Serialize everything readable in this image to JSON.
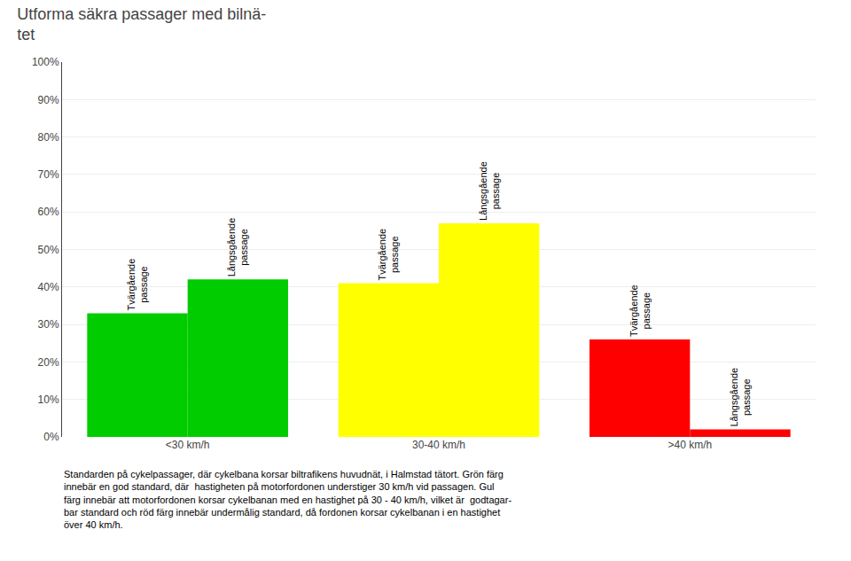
{
  "chart_data": {
    "type": "bar",
    "title": "Utforma säkra passager med bilnä-\ntet",
    "categories": [
      "<30 km/h",
      "30-40 km/h",
      ">40 km/h"
    ],
    "series": [
      {
        "name": "Tvärgående\npassage",
        "colors": [
          "#00cc00",
          "#ffff00",
          "#ff0000"
        ],
        "values": [
          33,
          41,
          26
        ]
      },
      {
        "name": "Långsgående\npassage",
        "colors": [
          "#00cc00",
          "#ffff00",
          "#ff0000"
        ],
        "values": [
          42,
          57,
          2
        ]
      }
    ],
    "ylim": [
      0,
      100
    ],
    "yticks": [
      {
        "value": 0,
        "label": "0%"
      },
      {
        "value": 10,
        "label": "10%"
      },
      {
        "value": 20,
        "label": "20%"
      },
      {
        "value": 30,
        "label": "30%"
      },
      {
        "value": 40,
        "label": "40%"
      },
      {
        "value": 50,
        "label": "50%"
      },
      {
        "value": 60,
        "label": "60%"
      },
      {
        "value": 70,
        "label": "70%"
      },
      {
        "value": 80,
        "label": "80%"
      },
      {
        "value": 90,
        "label": "90%"
      },
      {
        "value": 100,
        "label": "100%"
      }
    ],
    "grid": true,
    "annotations": [
      {
        "text": "Standarden på cykelpassager, där cykelbana korsar biltrafikens huvudnät, i Halmstad tätort. Grön färg\ninnebär en god standard, där  hastigheten på motorfordonen understiger 30 km/h vid passagen. Gul\nfärg innebär att motorfordonen korsar cykelbanan med en hastighet på 30 - 40 km/h, vilket är  godtagar-\nbar standard och röd färg innebär undermålig standard, då fordonen korsar cykelbanan i en hastighet\növer 40 km/h."
      }
    ]
  }
}
